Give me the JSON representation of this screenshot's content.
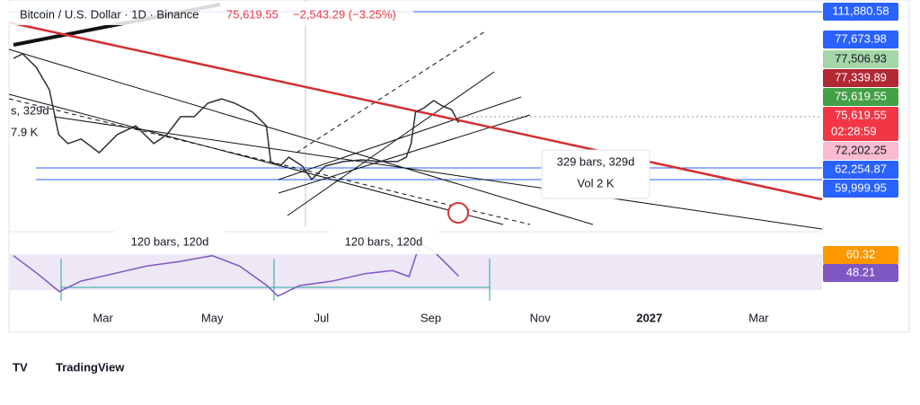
{
  "header": {
    "symbol": "Bitcoin / U.S. Dollar · 1D · Binance",
    "price": "75,619.55",
    "change": "−2,543.29 (−3.25%)",
    "countdown": "02:28:59"
  },
  "annotations": [
    "329 bars, 329d",
    "Vol 2 K",
    "120 bars, 120d",
    "120 bars, 120d",
    "s, 329d",
    "7.9 K"
  ],
  "brand": "TradingView",
  "chart_data": [
    {
      "type": "line",
      "log_scale": true,
      "color": "#2a2e39",
      "x": [
        1.36,
        1.53,
        1.78,
        2.02,
        2.19,
        2.36,
        2.6,
        2.93,
        3.26,
        3.6,
        3.93,
        4.17,
        4.42,
        4.67,
        4.92,
        5.17,
        5.41,
        5.74,
        5.99,
        6.07,
        6.24,
        6.4,
        6.65,
        6.82,
        7.07,
        7.4,
        7.73,
        8.06,
        8.39,
        8.55,
        8.64,
        8.72,
        8.88,
        9.05,
        9.21,
        9.38,
        9.51
      ],
      "values": [
        94850,
        96350,
        91900,
        84900,
        72500,
        70250,
        71400,
        68050,
        72500,
        74800,
        70250,
        72500,
        77250,
        77250,
        81000,
        82250,
        81000,
        78450,
        74800,
        65950,
        64900,
        66950,
        64900,
        61900,
        64900,
        65950,
        66350,
        65950,
        65950,
        66950,
        70250,
        78450,
        79700,
        81750,
        80200,
        79200,
        75619.55
      ],
      "xlim": [
        1.28,
        16.16
      ],
      "ylim": [
        52000,
        116500
      ],
      "xticks": [
        {
          "value": 3,
          "label": "Mar"
        },
        {
          "value": 5,
          "label": "May"
        },
        {
          "value": 7,
          "label": "Jul"
        },
        {
          "value": 9,
          "label": "Sep"
        },
        {
          "value": 11,
          "label": "Nov"
        },
        {
          "value": 13,
          "label": "2027"
        },
        {
          "value": 15,
          "label": "Mar"
        }
      ],
      "price_tags": [
        {
          "value": 111880.58,
          "label": "111,880.58",
          "color": "#2962ff"
        },
        {
          "value": 77673.98,
          "label": "77,673.98",
          "color": "#2962ff"
        },
        {
          "value": 77506.93,
          "label": "77,506.93",
          "color": "#a5d6a7"
        },
        {
          "value": 77339.89,
          "label": "77,339.89",
          "color": "#b22833"
        },
        {
          "value": 75619.55,
          "label": "75,619.55",
          "color": "#43a047"
        },
        {
          "value": 75619.55,
          "label": "75,619.55",
          "color": "#f23645"
        },
        {
          "value": 72202.25,
          "label": "72,202.25",
          "color": "#f8bbd0"
        },
        {
          "value": 62254.87,
          "label": "62,254.87",
          "color": "#2962ff"
        },
        {
          "value": 59999.95,
          "label": "59,999.95",
          "color": "#2962ff"
        }
      ]
    },
    {
      "type": "line",
      "color": "#7e57c2",
      "x": [
        1.36,
        1.8,
        2.2,
        2.6,
        3.2,
        3.8,
        4.4,
        5.0,
        5.5,
        6.0,
        6.2,
        6.6,
        7.2,
        7.8,
        8.3,
        8.6,
        8.8,
        9.05,
        9.3,
        9.51
      ],
      "values": [
        62,
        50,
        38,
        45,
        50,
        55,
        58,
        62,
        55,
        42,
        35,
        42,
        45,
        50,
        52,
        48,
        70,
        65,
        56,
        48.21
      ],
      "xlim": [
        1.28,
        16.16
      ],
      "ylim": [
        30,
        72
      ],
      "price_tags": [
        {
          "value": 60.32,
          "label": "60.32",
          "color": "#ff9800"
        },
        {
          "value": 48.21,
          "label": "48.21",
          "color": "#7e57c2"
        }
      ]
    }
  ]
}
